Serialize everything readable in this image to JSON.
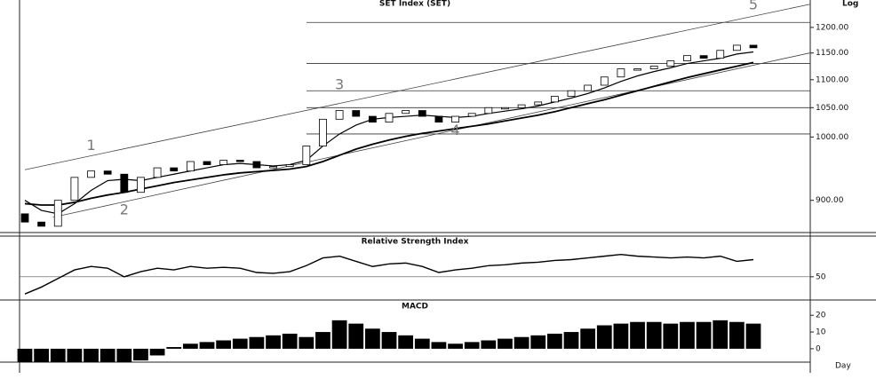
{
  "chart_data": [
    {
      "type": "candlestick",
      "title": "SET Index (SET)",
      "scale_label": "Log",
      "log_scale": true,
      "open": [
        880,
        868,
        862,
        900,
        935,
        945,
        940,
        912,
        935,
        950,
        945,
        960,
        955,
        962,
        960,
        950,
        952,
        955,
        985,
        1030,
        1045,
        1035,
        1025,
        1040,
        1045,
        1035,
        1025,
        1035,
        1040,
        1050,
        1050,
        1055,
        1060,
        1070,
        1080,
        1090,
        1105,
        1120,
        1120,
        1125,
        1135,
        1145,
        1140,
        1155,
        1165
      ],
      "close": [
        868,
        862,
        900,
        935,
        945,
        940,
        912,
        935,
        950,
        945,
        960,
        955,
        962,
        960,
        950,
        952,
        955,
        985,
        1030,
        1045,
        1035,
        1025,
        1040,
        1045,
        1035,
        1025,
        1035,
        1040,
        1050,
        1050,
        1055,
        1060,
        1070,
        1080,
        1090,
        1105,
        1120,
        1120,
        1125,
        1135,
        1145,
        1140,
        1155,
        1165,
        1160
      ],
      "series": [
        {
          "color": "#000000",
          "values": [
            900,
            885,
            880,
            895,
            915,
            930,
            932,
            930,
            935,
            940,
            945,
            950,
            955,
            957,
            955,
            953,
            955,
            962,
            985,
            1005,
            1020,
            1030,
            1033,
            1035,
            1037,
            1035,
            1033,
            1035,
            1040,
            1044,
            1048,
            1053,
            1060,
            1067,
            1075,
            1085,
            1097,
            1107,
            1115,
            1122,
            1130,
            1135,
            1140,
            1148,
            1152
          ]
        },
        {
          "color": "#000000",
          "values": [
            895,
            893,
            893,
            897,
            903,
            908,
            912,
            917,
            922,
            927,
            931,
            935,
            939,
            942,
            944,
            946,
            948,
            952,
            960,
            970,
            980,
            988,
            995,
            1001,
            1006,
            1010,
            1014,
            1018,
            1022,
            1027,
            1032,
            1037,
            1043,
            1050,
            1057,
            1064,
            1072,
            1080,
            1088,
            1096,
            1104,
            1111,
            1118,
            1125,
            1132
          ]
        }
      ],
      "ylim": [
        853,
        1256
      ],
      "yticks": [
        {
          "value": 900,
          "label": "900.00"
        },
        {
          "value": 1000,
          "label": "1000.00"
        },
        {
          "value": 1050,
          "label": "1050.00"
        },
        {
          "value": 1100,
          "label": "1100.00"
        },
        {
          "value": 1150,
          "label": "1150.00"
        },
        {
          "value": 1200,
          "label": "1200.00"
        }
      ],
      "hlines": [
        1210,
        1130,
        1080,
        1050,
        1005
      ],
      "trendlines": [
        {
          "start": [
            0,
            947
          ],
          "end": [
            47.4,
            1247
          ]
        },
        {
          "start": [
            1.7,
            875
          ],
          "end": [
            47.4,
            1150
          ]
        }
      ],
      "annotations": [
        {
          "text": "1",
          "x": 4,
          "y": 985
        },
        {
          "text": "2",
          "x": 6,
          "y": 885
        },
        {
          "text": "3",
          "x": 19,
          "y": 1090
        },
        {
          "text": "4",
          "x": 26,
          "y": 1010
        },
        {
          "text": "5",
          "x": 44,
          "y": 1245
        }
      ]
    },
    {
      "type": "line",
      "title": "Relative Strength Index",
      "series": [
        {
          "color": "#000000",
          "values": [
            30,
            38,
            48,
            58,
            62,
            60,
            50,
            56,
            60,
            58,
            62,
            60,
            61,
            60,
            55,
            54,
            56,
            63,
            72,
            74,
            68,
            62,
            65,
            66,
            62,
            55,
            58,
            60,
            63,
            64,
            66,
            67,
            69,
            70,
            72,
            74,
            76,
            74,
            73,
            72,
            73,
            72,
            74,
            68,
            70
          ]
        }
      ],
      "ylim": [
        25,
        85
      ],
      "yticks": [
        50
      ]
    },
    {
      "type": "bar",
      "title": "MACD",
      "values": [
        -8,
        -8,
        -8,
        -8,
        -8,
        -8,
        -8,
        -7,
        -4,
        1,
        3,
        4,
        5,
        6,
        7,
        8,
        9,
        7,
        10,
        17,
        15,
        12,
        10,
        8,
        6,
        4,
        3,
        4,
        5,
        6,
        7,
        8,
        9,
        10,
        12,
        14,
        15,
        16,
        16,
        15,
        16,
        16,
        17,
        16,
        15
      ],
      "ylim": [
        -8,
        27
      ],
      "yticks": [
        0,
        10,
        20
      ]
    },
    {
      "type": "axis",
      "x_unit": "Day"
    }
  ]
}
